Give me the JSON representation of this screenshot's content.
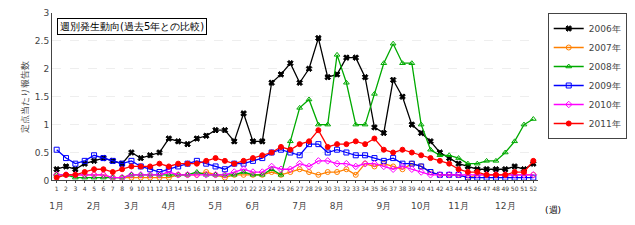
{
  "chart_data": {
    "type": "line",
    "title": "週別発生動向(過去5年との比較)",
    "y_label": "定点当たり報告数",
    "x_label": "(週)",
    "x": [
      1,
      2,
      3,
      4,
      5,
      6,
      7,
      8,
      9,
      10,
      11,
      12,
      13,
      14,
      15,
      16,
      17,
      18,
      19,
      20,
      21,
      22,
      23,
      24,
      25,
      26,
      27,
      28,
      29,
      30,
      31,
      32,
      33,
      34,
      35,
      36,
      37,
      38,
      39,
      40,
      41,
      42,
      43,
      44,
      45,
      46,
      47,
      48,
      49,
      50,
      51,
      52
    ],
    "xlim": [
      0.5,
      52.5
    ],
    "xticks": [
      1,
      2,
      3,
      4,
      5,
      6,
      7,
      8,
      9,
      10,
      11,
      12,
      13,
      14,
      15,
      16,
      17,
      18,
      19,
      20,
      21,
      22,
      23,
      24,
      25,
      26,
      27,
      28,
      29,
      30,
      31,
      32,
      33,
      34,
      35,
      36,
      37,
      38,
      39,
      40,
      41,
      42,
      43,
      44,
      45,
      46,
      47,
      48,
      49,
      50,
      51,
      52
    ],
    "x2lim": [
      0.5,
      52.5
    ],
    "x2ticks": [
      {
        "value": 1,
        "label": "1月"
      },
      {
        "value": 5,
        "label": "2月"
      },
      {
        "value": 9,
        "label": "3月"
      },
      {
        "value": 13,
        "label": "4月"
      },
      {
        "value": 18,
        "label": "5月"
      },
      {
        "value": 22,
        "label": "6月"
      },
      {
        "value": 27,
        "label": "7月"
      },
      {
        "value": 31,
        "label": "8月"
      },
      {
        "value": 36,
        "label": "9月"
      },
      {
        "value": 40,
        "label": "10月"
      },
      {
        "value": 44,
        "label": "11月"
      },
      {
        "value": 49,
        "label": "12月"
      }
    ],
    "ylim": [
      0,
      3.0
    ],
    "yticks": [
      0,
      0.5,
      1,
      1.5,
      2,
      2.5,
      3
    ],
    "grid": true,
    "legend": "right",
    "series": [
      {
        "name": "2006年",
        "color": "#000000",
        "marker": "x",
        "values": [
          0.2,
          0.25,
          0.2,
          0.3,
          0.35,
          0.4,
          0.35,
          0.3,
          0.5,
          0.4,
          0.45,
          0.5,
          0.75,
          0.7,
          0.65,
          0.75,
          0.8,
          0.9,
          0.9,
          0.7,
          1.2,
          0.7,
          0.7,
          1.75,
          1.9,
          2.1,
          1.75,
          2.0,
          2.55,
          1.85,
          1.9,
          2.2,
          2.2,
          1.85,
          0.95,
          0.85,
          1.8,
          1.5,
          1.0,
          0.85,
          0.7,
          0.5,
          0.4,
          0.3,
          0.25,
          0.2,
          0.2,
          0.2,
          0.2,
          0.25,
          0.2,
          0.3
        ]
      },
      {
        "name": "2007年",
        "color": "#FF8000",
        "marker": "circle-open",
        "values": [
          0.1,
          0.1,
          0.1,
          0.1,
          0.1,
          0.1,
          0.05,
          0.05,
          0.05,
          0.05,
          0.05,
          0.05,
          0.05,
          0.1,
          0.1,
          0.1,
          0.15,
          0.1,
          0.05,
          0.1,
          0.1,
          0.1,
          0.1,
          0.15,
          0.1,
          0.15,
          0.2,
          0.15,
          0.1,
          0.15,
          0.15,
          0.2,
          0.1,
          0.3,
          0.25,
          0.3,
          0.25,
          0.2,
          0.3,
          0.25,
          0.15,
          0.1,
          0.1,
          0.1,
          0.05,
          0.1,
          0.1,
          0.1,
          0.1,
          0.1,
          0.1,
          0.1
        ]
      },
      {
        "name": "2008年",
        "color": "#00AA00",
        "marker": "triangle-up-open",
        "values": [
          0.1,
          0.1,
          0.05,
          0.05,
          0.05,
          0.05,
          0.05,
          0.05,
          0.1,
          0.1,
          0.1,
          0.1,
          0.1,
          0.1,
          0.1,
          0.15,
          0.1,
          0.1,
          0.1,
          0.1,
          0.15,
          0.1,
          0.1,
          0.2,
          0.1,
          0.7,
          1.3,
          1.45,
          1.0,
          1.0,
          2.25,
          1.75,
          1.0,
          1.0,
          1.55,
          2.1,
          2.45,
          2.1,
          2.1,
          1.0,
          0.55,
          0.45,
          0.45,
          0.4,
          0.3,
          0.3,
          0.35,
          0.35,
          0.5,
          0.7,
          1.0,
          1.1
        ]
      },
      {
        "name": "2009年",
        "color": "#0000FF",
        "marker": "square-open",
        "values": [
          0.55,
          0.4,
          0.3,
          0.35,
          0.45,
          0.4,
          0.35,
          0.3,
          0.35,
          0.25,
          0.2,
          0.15,
          0.2,
          0.25,
          0.3,
          0.35,
          0.3,
          0.25,
          0.2,
          0.3,
          0.3,
          0.35,
          0.4,
          0.5,
          0.55,
          0.5,
          0.45,
          0.65,
          0.65,
          0.5,
          0.55,
          0.5,
          0.45,
          0.45,
          0.4,
          0.35,
          0.4,
          0.3,
          0.3,
          0.25,
          0.15,
          0.1,
          0.1,
          0.1,
          0.05,
          0.05,
          0.05,
          0.05,
          0.05,
          0.05,
          0.05,
          0.05
        ]
      },
      {
        "name": "2010年",
        "color": "#FF00FF",
        "marker": "diamond-open",
        "values": [
          0.1,
          0.1,
          0.1,
          0.1,
          0.1,
          0.1,
          0.05,
          0.05,
          0.1,
          0.1,
          0.1,
          0.1,
          0.15,
          0.1,
          0.1,
          0.1,
          0.1,
          0.1,
          0.1,
          0.15,
          0.2,
          0.15,
          0.15,
          0.25,
          0.2,
          0.2,
          0.3,
          0.25,
          0.35,
          0.35,
          0.3,
          0.3,
          0.25,
          0.3,
          0.3,
          0.25,
          0.2,
          0.25,
          0.2,
          0.15,
          0.1,
          0.1,
          0.1,
          0.1,
          0.1,
          0.1,
          0.1,
          0.1,
          0.1,
          0.1,
          0.1,
          0.1
        ]
      },
      {
        "name": "2011年",
        "color": "#FF0000",
        "marker": "circle",
        "values": [
          0.05,
          0.1,
          0.1,
          0.15,
          0.2,
          0.2,
          0.15,
          0.2,
          0.25,
          0.25,
          0.25,
          0.3,
          0.25,
          0.3,
          0.3,
          0.3,
          0.35,
          0.4,
          0.35,
          0.3,
          0.35,
          0.4,
          0.45,
          0.5,
          0.6,
          0.55,
          0.65,
          0.7,
          0.9,
          0.6,
          0.65,
          0.65,
          0.7,
          0.65,
          0.75,
          0.55,
          0.5,
          0.55,
          0.5,
          0.45,
          0.4,
          0.35,
          0.3,
          0.2,
          0.15,
          0.15,
          0.1,
          0.1,
          0.1,
          0.15,
          0.15,
          0.35
        ]
      }
    ]
  }
}
